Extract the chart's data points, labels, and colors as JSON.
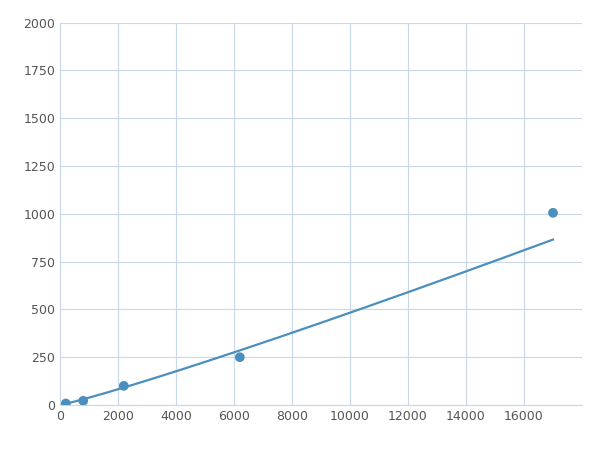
{
  "x_points": [
    200,
    800,
    2200,
    6200,
    17000
  ],
  "y_points": [
    8,
    22,
    100,
    250,
    1005
  ],
  "line_color": "#4a8fbe",
  "marker_color": "#4a8fbe",
  "marker_size": 7,
  "linewidth": 1.6,
  "xlim": [
    0,
    18000
  ],
  "ylim": [
    0,
    2000
  ],
  "xticks": [
    0,
    2000,
    4000,
    6000,
    8000,
    10000,
    12000,
    14000,
    16000
  ],
  "yticks": [
    0,
    250,
    500,
    750,
    1000,
    1250,
    1500,
    1750,
    2000
  ],
  "grid_color": "#c8d8e8",
  "background_color": "#ffffff",
  "figsize": [
    6.0,
    4.5
  ],
  "dpi": 100
}
